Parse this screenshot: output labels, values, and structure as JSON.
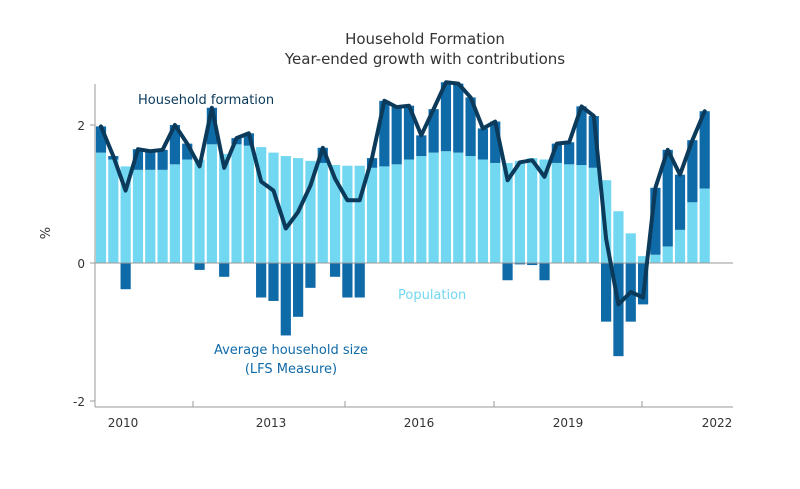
{
  "chart_data": {
    "type": "bar",
    "title": "Household Formation",
    "subtitle": "Year-ended growth with contributions",
    "ylabel": "%",
    "ylim": [
      -2,
      2.7
    ],
    "yticks": [
      2,
      0,
      -2
    ],
    "xticks": [
      "2010",
      "2013",
      "2016",
      "2019",
      "2022"
    ],
    "grid": false,
    "colors": {
      "population": "#72d7f0",
      "household_size": "#0f6aa8",
      "formation": "#0b3a5b",
      "axis": "#9a9a9a",
      "text": "#333333"
    },
    "annotations": {
      "formation": "Household formation",
      "population": "Population",
      "household_size_line1": "Average household size",
      "household_size_line2": "(LFS Measure)"
    },
    "x": [
      "2009-Q4",
      "2010-Q1",
      "2010-Q2",
      "2010-Q3",
      "2010-Q4",
      "2011-Q1",
      "2011-Q2",
      "2011-Q3",
      "2011-Q4",
      "2012-Q1",
      "2012-Q2",
      "2012-Q3",
      "2012-Q4",
      "2013-Q1",
      "2013-Q2",
      "2013-Q3",
      "2013-Q4",
      "2014-Q1",
      "2014-Q2",
      "2014-Q3",
      "2014-Q4",
      "2015-Q1",
      "2015-Q2",
      "2015-Q3",
      "2015-Q4",
      "2016-Q1",
      "2016-Q2",
      "2016-Q3",
      "2016-Q4",
      "2017-Q1",
      "2017-Q2",
      "2017-Q3",
      "2017-Q4",
      "2018-Q1",
      "2018-Q2",
      "2018-Q3",
      "2018-Q4",
      "2019-Q1",
      "2019-Q2",
      "2019-Q3",
      "2019-Q4",
      "2020-Q1",
      "2020-Q2",
      "2020-Q3",
      "2020-Q4",
      "2021-Q1",
      "2021-Q2",
      "2021-Q3",
      "2021-Q4",
      "2022-Q1"
    ],
    "series": [
      {
        "name": "Population",
        "values": [
          1.6,
          1.5,
          1.4,
          1.35,
          1.35,
          1.35,
          1.43,
          1.5,
          1.5,
          1.72,
          1.58,
          1.72,
          1.7,
          1.68,
          1.6,
          1.55,
          1.52,
          1.48,
          1.45,
          1.42,
          1.41,
          1.41,
          1.38,
          1.4,
          1.43,
          1.5,
          1.55,
          1.6,
          1.62,
          1.6,
          1.55,
          1.5,
          1.45,
          1.45,
          1.48,
          1.52,
          1.5,
          1.45,
          1.43,
          1.42,
          1.38,
          1.2,
          0.75,
          0.43,
          0.1,
          0.12,
          0.24,
          0.48,
          0.88,
          1.08
        ]
      },
      {
        "name": "Average household size",
        "values": [
          0.38,
          0.05,
          -0.38,
          0.3,
          0.27,
          0.29,
          0.57,
          0.23,
          -0.1,
          0.53,
          -0.2,
          0.09,
          0.18,
          -0.5,
          -0.55,
          -1.05,
          -0.78,
          -0.36,
          0.22,
          -0.2,
          -0.5,
          -0.5,
          0.14,
          0.95,
          0.83,
          0.78,
          0.3,
          0.63,
          1.0,
          1.0,
          0.85,
          0.45,
          0.6,
          -0.25,
          -0.02,
          -0.03,
          -0.25,
          0.28,
          0.32,
          0.85,
          0.75,
          -0.85,
          -1.35,
          -0.85,
          -0.6,
          0.97,
          1.4,
          0.8,
          0.9,
          1.12
        ]
      },
      {
        "name": "Household formation",
        "values": [
          1.98,
          1.55,
          1.05,
          1.65,
          1.62,
          1.64,
          2.0,
          1.73,
          1.4,
          2.25,
          1.38,
          1.81,
          1.88,
          1.18,
          1.05,
          0.5,
          0.74,
          1.12,
          1.67,
          1.22,
          0.91,
          0.91,
          1.52,
          2.35,
          2.26,
          2.28,
          1.85,
          2.23,
          2.62,
          2.6,
          2.4,
          1.95,
          2.05,
          1.2,
          1.46,
          1.49,
          1.25,
          1.73,
          1.75,
          2.27,
          2.13,
          0.35,
          -0.6,
          -0.42,
          -0.5,
          1.09,
          1.64,
          1.28,
          1.78,
          2.2
        ]
      }
    ]
  }
}
